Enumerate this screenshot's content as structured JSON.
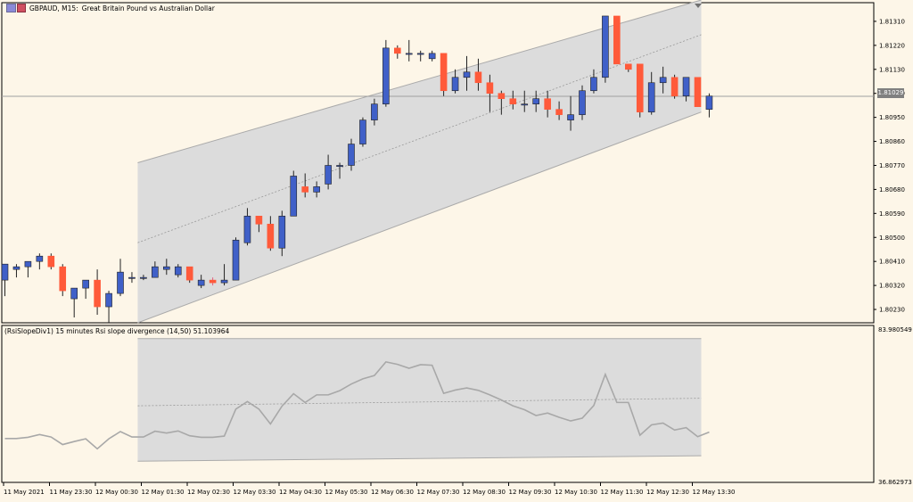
{
  "header": {
    "symbol": "GBPAUD, M15:",
    "description": "Great Britain Pound vs Australian Dollar"
  },
  "indicator": {
    "title": "(RsiSlopeDiv1) 15 minutes Rsi slope divergence (14,50) 51.103964",
    "max_label": "83.980549",
    "min_label": "36.862973"
  },
  "current_price": "1.81029",
  "colors": {
    "background": "#fdf6e8",
    "bull_candle": "#4060c8",
    "bear_candle": "#ff5a3a",
    "channel_fill": "#dcdcdc",
    "channel_line": "#aaaaaa",
    "indicator_line": "#a8a8a8"
  },
  "price_axis": [
    "1.81310",
    "1.81220",
    "1.81130",
    "1.81040",
    "1.80950",
    "1.80860",
    "1.80770",
    "1.80680",
    "1.80590",
    "1.80500",
    "1.80410",
    "1.80320",
    "1.80230"
  ],
  "time_axis": [
    "11 May 2021",
    "11 May 23:30",
    "12 May 00:30",
    "12 May 01:30",
    "12 May 02:30",
    "12 May 03:30",
    "12 May 04:30",
    "12 May 05:30",
    "12 May 06:30",
    "12 May 07:30",
    "12 May 08:30",
    "12 May 09:30",
    "12 May 10:30",
    "12 May 11:30",
    "12 May 12:30",
    "12 May 13:30"
  ],
  "chart_data": {
    "type": "candlestick",
    "price_ylim": [
      1.8018,
      1.8138
    ],
    "indicator_ylim": [
      36.862973,
      83.980549
    ],
    "candles": [
      [
        1.8034,
        1.804,
        1.8028,
        1.804
      ],
      [
        1.8038,
        1.804,
        1.8035,
        1.8039
      ],
      [
        1.8039,
        1.8041,
        1.8035,
        1.8041
      ],
      [
        1.8041,
        1.8044,
        1.8038,
        1.8043
      ],
      [
        1.8043,
        1.8044,
        1.8038,
        1.8039
      ],
      [
        1.8039,
        1.804,
        1.8028,
        1.803
      ],
      [
        1.8027,
        1.8031,
        1.802,
        1.8031
      ],
      [
        1.8031,
        1.8034,
        1.8027,
        1.8034
      ],
      [
        1.8034,
        1.8038,
        1.8021,
        1.8024
      ],
      [
        1.8024,
        1.803,
        1.8018,
        1.8029
      ],
      [
        1.8029,
        1.8042,
        1.8028,
        1.8037
      ],
      [
        1.8035,
        1.8037,
        1.8033,
        1.8035
      ],
      [
        1.8035,
        1.8036,
        1.8034,
        1.8035
      ],
      [
        1.8035,
        1.8041,
        1.8035,
        1.8039
      ],
      [
        1.8038,
        1.8042,
        1.8036,
        1.8039
      ],
      [
        1.8036,
        1.804,
        1.8035,
        1.8039
      ],
      [
        1.8039,
        1.8039,
        1.8033,
        1.8034
      ],
      [
        1.8032,
        1.8036,
        1.8031,
        1.8034
      ],
      [
        1.8034,
        1.8035,
        1.8032,
        1.8033
      ],
      [
        1.8033,
        1.804,
        1.8032,
        1.8034
      ],
      [
        1.8034,
        1.805,
        1.8034,
        1.8049
      ],
      [
        1.8048,
        1.8061,
        1.8047,
        1.8058
      ],
      [
        1.8058,
        1.8058,
        1.8052,
        1.8055
      ],
      [
        1.8055,
        1.8058,
        1.8045,
        1.8046
      ],
      [
        1.8046,
        1.806,
        1.8043,
        1.8058
      ],
      [
        1.8058,
        1.8075,
        1.8058,
        1.8073
      ],
      [
        1.8069,
        1.8074,
        1.8065,
        1.8067
      ],
      [
        1.8067,
        1.8071,
        1.8065,
        1.8069
      ],
      [
        1.807,
        1.8081,
        1.8068,
        1.8077
      ],
      [
        1.8077,
        1.8078,
        1.8072,
        1.8077
      ],
      [
        1.8077,
        1.8087,
        1.8075,
        1.8085
      ],
      [
        1.8085,
        1.8095,
        1.8084,
        1.8094
      ],
      [
        1.8094,
        1.8102,
        1.8092,
        1.81
      ],
      [
        1.81,
        1.8124,
        1.8099,
        1.8121
      ],
      [
        1.8121,
        1.8122,
        1.8117,
        1.8119
      ],
      [
        1.8119,
        1.8124,
        1.8116,
        1.8119
      ],
      [
        1.8119,
        1.812,
        1.8116,
        1.8119
      ],
      [
        1.8117,
        1.812,
        1.8116,
        1.8119
      ],
      [
        1.8119,
        1.8119,
        1.8103,
        1.8105
      ],
      [
        1.8105,
        1.8113,
        1.8104,
        1.811
      ],
      [
        1.811,
        1.8118,
        1.8105,
        1.8112
      ],
      [
        1.8112,
        1.8117,
        1.8105,
        1.8108
      ],
      [
        1.8108,
        1.8111,
        1.8097,
        1.8104
      ],
      [
        1.8104,
        1.8105,
        1.8096,
        1.8102
      ],
      [
        1.8102,
        1.8105,
        1.8098,
        1.81
      ],
      [
        1.81,
        1.8105,
        1.8097,
        1.81
      ],
      [
        1.81,
        1.8105,
        1.8097,
        1.8102
      ],
      [
        1.8102,
        1.8105,
        1.8095,
        1.8098
      ],
      [
        1.8098,
        1.8101,
        1.8094,
        1.8096
      ],
      [
        1.8094,
        1.8103,
        1.809,
        1.8096
      ],
      [
        1.8096,
        1.8107,
        1.8094,
        1.8105
      ],
      [
        1.8105,
        1.8113,
        1.8104,
        1.811
      ],
      [
        1.811,
        1.8133,
        1.8108,
        1.8133
      ],
      [
        1.8133,
        1.8133,
        1.8115,
        1.8115
      ],
      [
        1.8115,
        1.8115,
        1.8112,
        1.8113
      ],
      [
        1.8115,
        1.8115,
        1.8095,
        1.8097
      ],
      [
        1.8097,
        1.8112,
        1.8096,
        1.8108
      ],
      [
        1.8108,
        1.8114,
        1.8104,
        1.811
      ],
      [
        1.811,
        1.8111,
        1.8102,
        1.8103
      ],
      [
        1.8103,
        1.811,
        1.8101,
        1.811
      ],
      [
        1.811,
        1.811,
        1.8099,
        1.8099
      ],
      [
        1.8098,
        1.8104,
        1.8095,
        1.8103
      ]
    ],
    "indicator_values": [
      49.0,
      49.0,
      49.4,
      50.3,
      49.5,
      47.0,
      48.0,
      48.9,
      45.6,
      48.9,
      51.3,
      49.5,
      49.5,
      51.4,
      50.8,
      51.5,
      49.9,
      49.4,
      49.4,
      49.8,
      58.7,
      61.2,
      58.7,
      53.8,
      59.7,
      63.8,
      60.9,
      63.4,
      63.4,
      64.8,
      67.0,
      68.7,
      69.8,
      74.3,
      73.5,
      72.2,
      73.4,
      73.2,
      63.9,
      65.0,
      65.7,
      64.9,
      63.4,
      61.7,
      59.8,
      58.5,
      56.6,
      57.4,
      56.0,
      54.8,
      55.7,
      59.9,
      70.2,
      60.9,
      60.9,
      50.1,
      53.5,
      54.1,
      51.8,
      52.6,
      49.6,
      51.1
    ],
    "channel_price": {
      "upper": [
        1.8078,
        1.8139
      ],
      "mid": [
        1.8048,
        1.8126
      ],
      "lower": [
        1.8018,
        1.8097
      ]
    },
    "channel_indicator": {
      "upper": [
        82.0,
        82.0
      ],
      "mid": [
        59.8,
        62.3
      ],
      "lower": [
        41.5,
        43.3
      ]
    }
  }
}
